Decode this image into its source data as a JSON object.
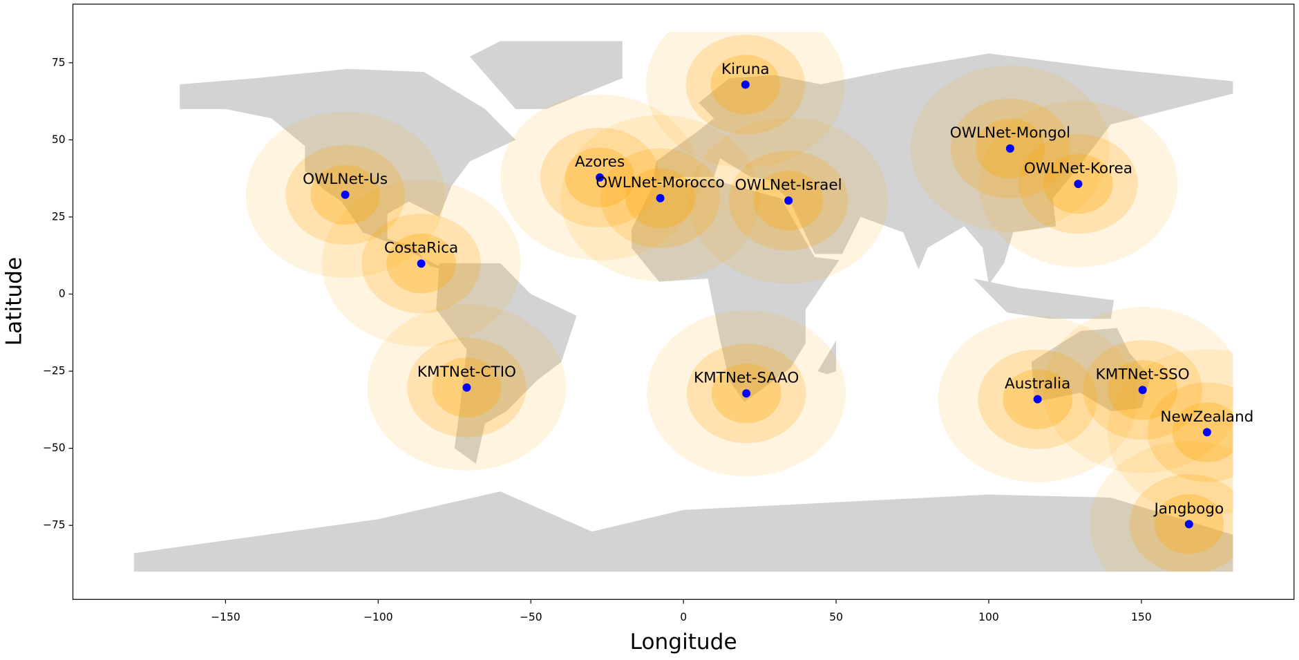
{
  "chart_data": {
    "type": "scatter",
    "xlabel": "Longitude",
    "ylabel": "Latitude",
    "labels": [
      "OWLNet-Us",
      "CostaRica",
      "KMTNet-CTIO",
      "Azores",
      "OWLNet-Morocco",
      "Kiruna",
      "OWLNet-Israel",
      "KMTNet-SAAO",
      "OWLNet-Mongol",
      "OWLNet-Korea",
      "Australia",
      "KMTNet-SSO",
      "NewZealand",
      "Jangbogo"
    ],
    "x": [
      -110.8,
      -85.9,
      -71.0,
      -27.4,
      -7.6,
      20.3,
      34.4,
      20.6,
      107.0,
      129.3,
      116.0,
      150.4,
      171.5,
      165.6
    ],
    "values": [
      32.2,
      9.9,
      -30.3,
      37.8,
      31.1,
      67.9,
      30.3,
      -32.2,
      47.2,
      35.7,
      -34.1,
      -31.1,
      -44.8,
      -74.6
    ],
    "color": "#0000ff",
    "area_color": "#ffa500",
    "xlim": [
      -200,
      200
    ],
    "xticks": [
      {
        "value": -150,
        "label": "−150"
      },
      {
        "value": -100,
        "label": "−100"
      },
      {
        "value": -50,
        "label": "−50"
      },
      0,
      50,
      100,
      150
    ],
    "ylim": [
      -99,
      94
    ],
    "yticks": [
      {
        "value": -75,
        "label": "−75"
      },
      {
        "value": -50,
        "label": "−50"
      },
      {
        "value": -25,
        "label": "−25"
      },
      0,
      25,
      50,
      75
    ]
  }
}
